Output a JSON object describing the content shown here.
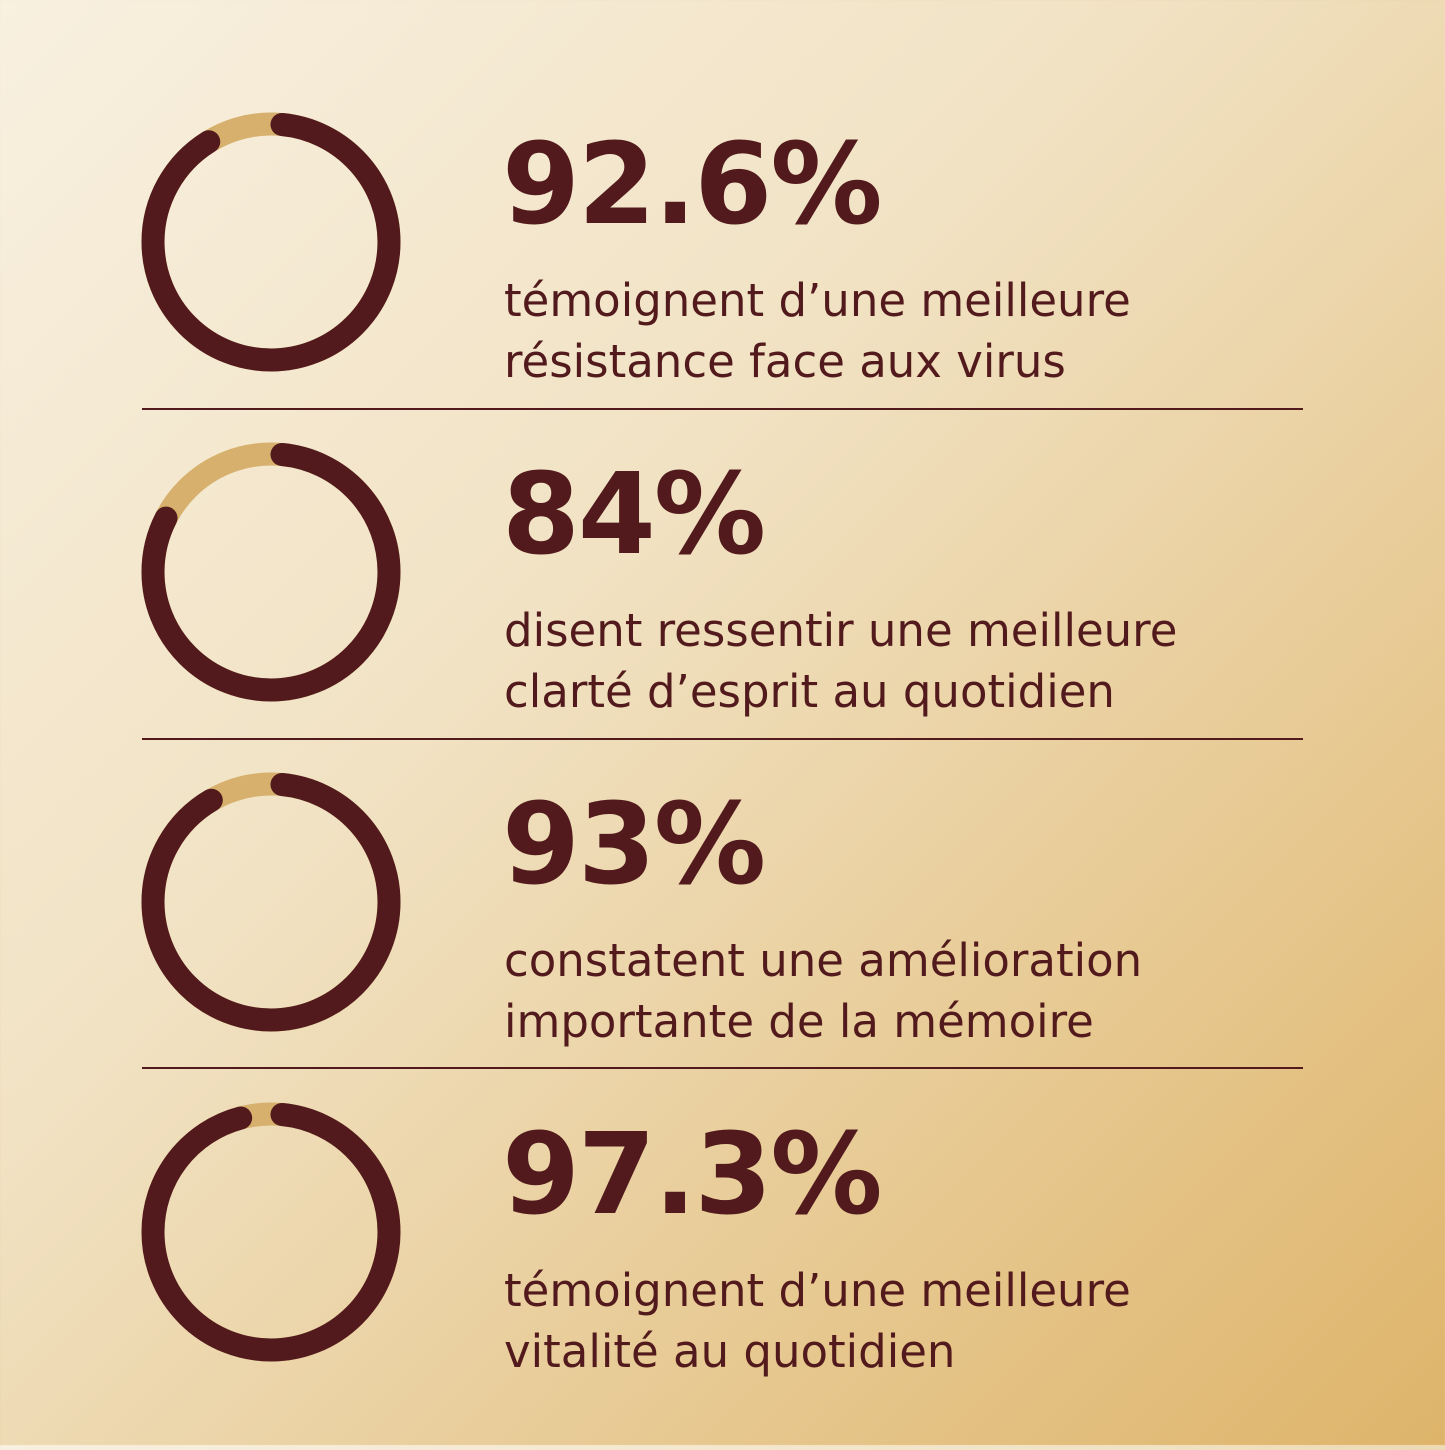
{
  "colors": {
    "fill": "#521a1c",
    "track": "#d6b06c"
  },
  "chart_data": {
    "type": "donut",
    "items": [
      {
        "value": 92.6,
        "label": "92.6%",
        "lines": [
          "témoignent d’une meilleure",
          "résistance face aux virus"
        ]
      },
      {
        "value": 84,
        "label": "84%",
        "lines": [
          "disent ressentir une meilleure",
          "clarté d’esprit au quotidien"
        ]
      },
      {
        "value": 93,
        "label": "93%",
        "lines": [
          "constatent une amélioration",
          "importante de la mémoire"
        ]
      },
      {
        "value": 97.3,
        "label": "97.3%",
        "lines": [
          "témoignent d’une meilleure",
          "vitalité au quotidien"
        ]
      }
    ]
  }
}
